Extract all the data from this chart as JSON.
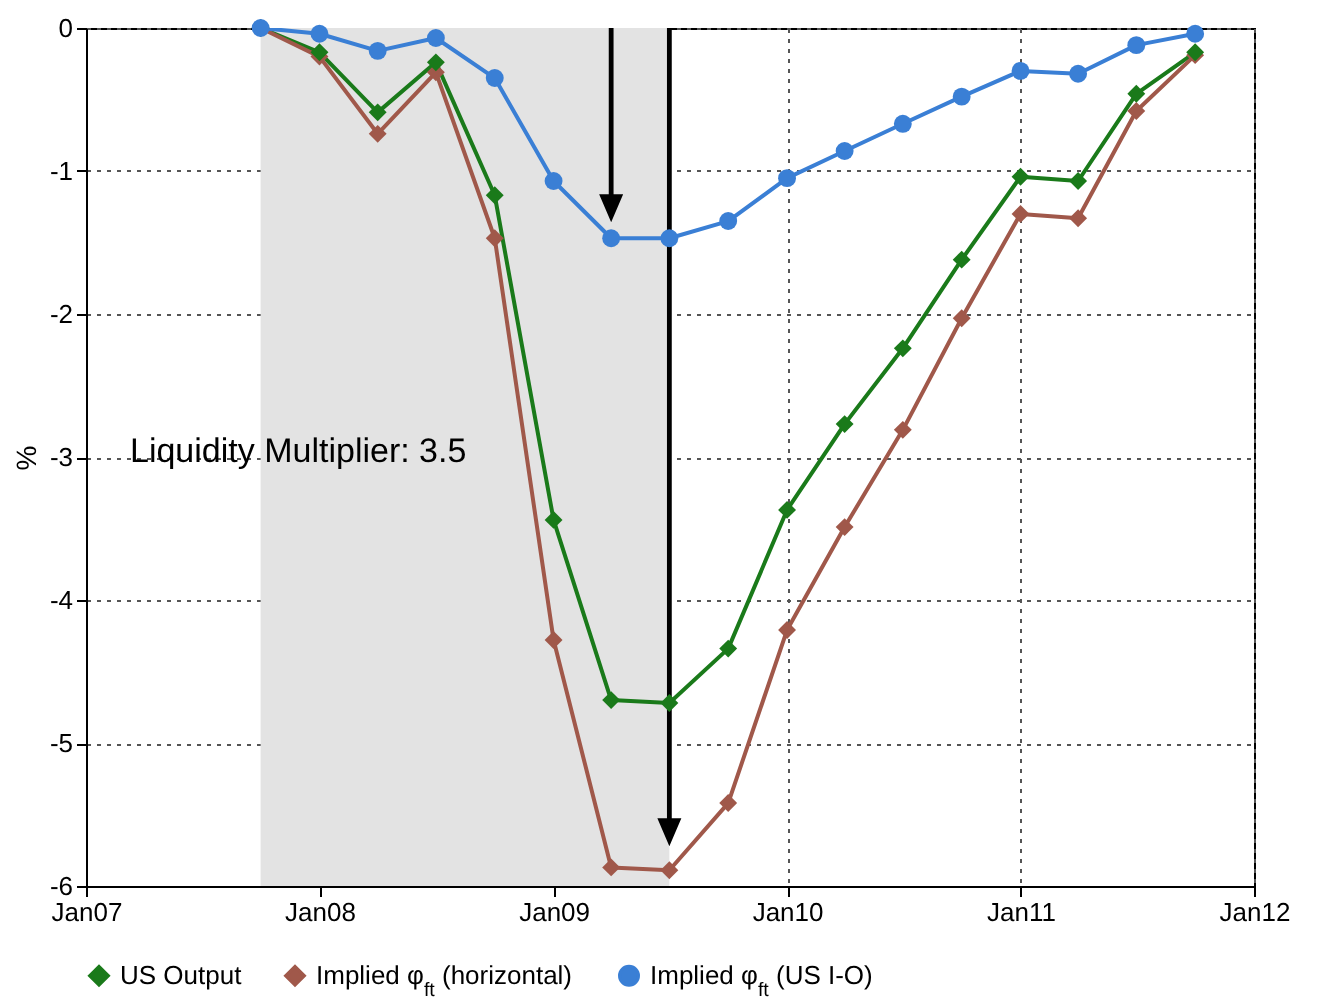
{
  "chart_data": {
    "type": "line",
    "ylabel": "%",
    "x": [
      "2007-10",
      "2008-01",
      "2008-04",
      "2008-07",
      "2008-10",
      "2009-01",
      "2009-04",
      "2009-07",
      "2009-10",
      "2010-01",
      "2010-04",
      "2010-07",
      "2010-10",
      "2011-01",
      "2011-04",
      "2011-07",
      "2011-10"
    ],
    "series": [
      {
        "name": "US Output",
        "color": "#1a7a1a",
        "marker": "diamond",
        "values": [
          0,
          -0.17,
          -0.59,
          -0.24,
          -1.17,
          -3.44,
          -4.7,
          -4.72,
          -4.34,
          -3.37,
          -2.77,
          -2.24,
          -1.62,
          -1.04,
          -1.07,
          -0.46,
          -0.17
        ]
      },
      {
        "name": "Implied φ$_{ft}$ (horizontal)",
        "color": "#a0584a",
        "marker": "diamond",
        "values": [
          0,
          -0.2,
          -0.74,
          -0.31,
          -1.47,
          -4.28,
          -5.87,
          -5.89,
          -5.42,
          -4.21,
          -3.49,
          -2.81,
          -2.03,
          -1.3,
          -1.33,
          -0.58,
          -0.19
        ]
      },
      {
        "name": "Implied φ$_{ft}$ (US I-O)",
        "color": "#3a7fd5",
        "marker": "circle",
        "values": [
          0,
          -0.04,
          -0.16,
          -0.07,
          -0.35,
          -1.07,
          -1.47,
          -1.47,
          -1.35,
          -1.05,
          -0.86,
          -0.67,
          -0.48,
          -0.3,
          -0.32,
          -0.12,
          -0.04
        ]
      }
    ],
    "xlim": [
      "2007-01",
      "2012-01"
    ],
    "xticks": [
      {
        "value": "2007-01",
        "label": "Jan07"
      },
      {
        "value": "2008-01",
        "label": "Jan08"
      },
      {
        "value": "2009-01",
        "label": "Jan09"
      },
      {
        "value": "2010-01",
        "label": "Jan10"
      },
      {
        "value": "2011-01",
        "label": "Jan11"
      },
      {
        "value": "2012-01",
        "label": "Jan12"
      }
    ],
    "ylim": [
      -6,
      0
    ],
    "yticks": [
      -6,
      -5,
      -4,
      -3,
      -2,
      -1,
      0
    ],
    "bands": [
      {
        "axis": "x",
        "from": "2007-10",
        "to": "2009-07",
        "color": "#e3e3e3"
      }
    ],
    "annotations": [
      "Liquidity Multiplier: 3.5"
    ],
    "grid": true,
    "legend": "bottom",
    "line_style": "solid"
  }
}
